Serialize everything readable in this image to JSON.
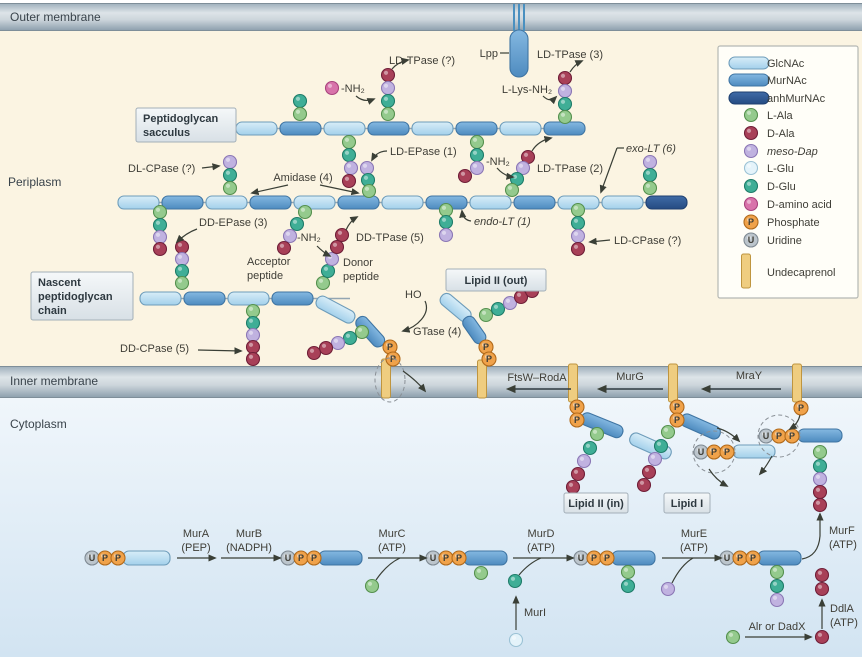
{
  "regions": {
    "outer_membrane": "Outer membrane",
    "periplasm": "Periplasm",
    "inner_membrane": "Inner membrane",
    "cytoplasm": "Cytoplasm"
  },
  "boxes": {
    "sacculus_l1": "Peptidoglycan",
    "sacculus_l2": "sacculus",
    "nascent_l1": "Nascent",
    "nascent_l2": "peptidoglycan",
    "nascent_l3": "chain",
    "lipid2_out": "Lipid II (out)",
    "lipid2_in": "Lipid II (in)",
    "lipid1": "Lipid I"
  },
  "labels": {
    "lpp": "Lpp",
    "ld_tpase_q": "LD-TPase (?)",
    "nh2": "-NH₂",
    "ld_tpase_3": "LD-TPase (3)",
    "l_lys_nh2": "L-Lys-NH₂",
    "dl_cpase": "DL-CPase (?)",
    "amidase": "Amidase (4)",
    "ld_epase": "LD-EPase (1)",
    "ld_tpase_2": "LD-TPase (2)",
    "exo_lt": "exo-LT (6)",
    "endo_lt": "endo-LT (1)",
    "ld_cpase": "LD-CPase (?)",
    "dd_epase": "DD-EPase (3)",
    "dd_tpase": "DD-TPase (5)",
    "acceptor_l1": "Acceptor",
    "acceptor_l2": "peptide",
    "donor_l1": "Donor",
    "donor_l2": "peptide",
    "dd_cpase": "DD-CPase (5)",
    "ho": "HO",
    "gtase": "GTase (4)"
  },
  "membrane_proteins": {
    "ftsw_roda": "FtsW–RodA",
    "murg": "MurG",
    "mray": "MraY"
  },
  "pathway": {
    "mura": "MurA",
    "mura_cof": "(PEP)",
    "murb": "MurB",
    "murb_cof": "(NADPH)",
    "murc": "MurC",
    "murc_cof": "(ATP)",
    "murd": "MurD",
    "murd_cof": "(ATP)",
    "mure": "MurE",
    "mure_cof": "(ATP)",
    "murf": "MurF",
    "murf_cof": "(ATP)",
    "muri": "MurI",
    "ddla": "DdlA",
    "ddla_cof": "(ATP)",
    "alr": "Alr or DadX"
  },
  "legend": {
    "items": [
      {
        "icon": "glcnac-cylinder",
        "label": "GlcNAc"
      },
      {
        "icon": "murnac-cylinder",
        "label": "MurNAc"
      },
      {
        "icon": "anhmurnac-cylinder",
        "label": "anhMurNAc"
      },
      {
        "icon": "l-ala-bead",
        "label": "L-Ala"
      },
      {
        "icon": "d-ala-bead",
        "label": "D-Ala"
      },
      {
        "icon": "meso-dap-bead",
        "label": "meso-Dap"
      },
      {
        "icon": "l-glu-bead",
        "label": "L-Glu"
      },
      {
        "icon": "d-glu-bead",
        "label": "D-Glu"
      },
      {
        "icon": "d-amino-acid-bead",
        "label": "D-amino acid"
      },
      {
        "icon": "phosphate-bead",
        "label": "Phosphate"
      },
      {
        "icon": "uridine-bead",
        "label": "Uridine"
      },
      {
        "icon": "undecaprenol-stick",
        "label": "Undecaprenol"
      }
    ]
  },
  "colors": {
    "glcnac": "#b9ddf1",
    "murnac": "#68a2d2",
    "anhmurnac": "#2f5d9e",
    "l_ala": "#94ca8d",
    "d_ala": "#a84058",
    "meso_dap": "#c0b2e0",
    "l_glu": "#e4f3fa",
    "d_glu": "#3fae96",
    "d_amino_acid": "#d873aa",
    "phosphate": "#f0a24a",
    "uridine": "#bcc5cc",
    "undecaprenol": "#efcd80",
    "membrane": "#b9c4cc",
    "periplasm_bg": "#fbf4e2",
    "cytoplasm_bg": "#ddeaf5",
    "arrow": "#3a3f36"
  },
  "shapes": {
    "cylinders": [
      [
        236,
        122,
        41,
        "g"
      ],
      [
        280,
        122,
        41,
        "m"
      ],
      [
        324,
        122,
        41,
        "g"
      ],
      [
        368,
        122,
        41,
        "m"
      ],
      [
        412,
        122,
        41,
        "g"
      ],
      [
        456,
        122,
        41,
        "m"
      ],
      [
        500,
        122,
        41,
        "g"
      ],
      [
        544,
        122,
        41,
        "m"
      ],
      [
        118,
        196,
        41,
        "g"
      ],
      [
        162,
        196,
        41,
        "m"
      ],
      [
        206,
        196,
        41,
        "g"
      ],
      [
        250,
        196,
        41,
        "m"
      ],
      [
        294,
        196,
        41,
        "g"
      ],
      [
        338,
        196,
        41,
        "m"
      ],
      [
        382,
        196,
        41,
        "g"
      ],
      [
        426,
        196,
        41,
        "m"
      ],
      [
        470,
        196,
        41,
        "g"
      ],
      [
        514,
        196,
        41,
        "m"
      ],
      [
        558,
        196,
        41,
        "g"
      ],
      [
        602,
        196,
        41,
        "g"
      ],
      [
        646,
        196,
        41,
        "a"
      ],
      [
        140,
        292,
        41,
        "g"
      ],
      [
        184,
        292,
        41,
        "m"
      ],
      [
        228,
        292,
        41,
        "g"
      ],
      [
        272,
        292,
        41,
        "m"
      ],
      [
        320,
        294,
        42,
        "g",
        28
      ],
      [
        363,
        314,
        36,
        "m",
        48
      ],
      [
        446,
        291,
        36,
        "g",
        40
      ],
      [
        471,
        314,
        30,
        "m",
        55
      ],
      [
        584,
        411,
        44,
        "m",
        22
      ],
      [
        633,
        431,
        44,
        "g",
        24
      ],
      [
        684,
        412,
        42,
        "m",
        24
      ],
      [
        733,
        445,
        42,
        "g"
      ],
      [
        798,
        429,
        44,
        "m"
      ],
      [
        123,
        551,
        47,
        "g",
        0,
        14
      ],
      [
        319,
        551,
        43,
        "m",
        0,
        14
      ],
      [
        464,
        551,
        43,
        "m",
        0,
        14
      ],
      [
        612,
        551,
        43,
        "m",
        0,
        14
      ],
      [
        758,
        551,
        43,
        "m",
        0,
        14
      ],
      [
        510,
        30,
        18,
        "m",
        0,
        47
      ],
      [
        729,
        57,
        40,
        "g",
        0,
        12
      ],
      [
        729,
        74,
        40,
        "m",
        0,
        12
      ],
      [
        729,
        92,
        40,
        "a",
        0,
        12
      ]
    ],
    "sticks": [
      [
        386,
        359,
        39
      ],
      [
        482,
        360,
        38
      ],
      [
        573,
        364,
        38
      ],
      [
        673,
        364,
        38
      ],
      [
        797,
        364,
        38
      ],
      [
        746,
        254,
        34
      ]
    ],
    "beads": [
      [
        300,
        101,
        "dglu"
      ],
      [
        300,
        114,
        "lala"
      ],
      [
        388,
        75,
        "dala"
      ],
      [
        388,
        88,
        "mdap"
      ],
      [
        388,
        101,
        "dglu"
      ],
      [
        388,
        114,
        "lala"
      ],
      [
        332,
        88,
        "dam"
      ],
      [
        565,
        78,
        "dala"
      ],
      [
        565,
        91,
        "mdap"
      ],
      [
        565,
        104,
        "dglu"
      ],
      [
        565,
        117,
        "lala"
      ],
      [
        349,
        142,
        "lala"
      ],
      [
        349,
        155,
        "dglu"
      ],
      [
        351,
        168,
        "mdap"
      ],
      [
        349,
        181,
        "dala"
      ],
      [
        367,
        168,
        "mdap"
      ],
      [
        368,
        180,
        "dglu"
      ],
      [
        369,
        191,
        "lala"
      ],
      [
        477,
        142,
        "lala"
      ],
      [
        477,
        155,
        "dglu"
      ],
      [
        477,
        168,
        "mdap"
      ],
      [
        465,
        176,
        "dala"
      ],
      [
        528,
        157,
        "dala"
      ],
      [
        523,
        168,
        "mdap"
      ],
      [
        517,
        179,
        "dglu"
      ],
      [
        512,
        190,
        "lala"
      ],
      [
        230,
        162,
        "mdap"
      ],
      [
        230,
        175,
        "dglu"
      ],
      [
        230,
        188,
        "lala"
      ],
      [
        650,
        162,
        "mdap"
      ],
      [
        650,
        175,
        "dglu"
      ],
      [
        650,
        188,
        "lala"
      ],
      [
        446,
        210,
        "lala"
      ],
      [
        446,
        222,
        "dglu"
      ],
      [
        446,
        235,
        "mdap"
      ],
      [
        578,
        210,
        "lala"
      ],
      [
        578,
        223,
        "dglu"
      ],
      [
        578,
        236,
        "mdap"
      ],
      [
        578,
        249,
        "dala"
      ],
      [
        305,
        212,
        "lala"
      ],
      [
        297,
        224,
        "dglu"
      ],
      [
        290,
        236,
        "mdap"
      ],
      [
        284,
        248,
        "dala"
      ],
      [
        323,
        283,
        "lala"
      ],
      [
        328,
        271,
        "dglu"
      ],
      [
        332,
        259,
        "mdap"
      ],
      [
        337,
        247,
        "dala"
      ],
      [
        342,
        235,
        "dala"
      ],
      [
        160,
        212,
        "lala"
      ],
      [
        160,
        225,
        "dglu"
      ],
      [
        160,
        237,
        "mdap"
      ],
      [
        160,
        249,
        "dala"
      ],
      [
        182,
        247,
        "dala"
      ],
      [
        182,
        259,
        "mdap"
      ],
      [
        182,
        271,
        "dglu"
      ],
      [
        182,
        283,
        "lala"
      ],
      [
        253,
        311,
        "lala"
      ],
      [
        253,
        323,
        "dglu"
      ],
      [
        253,
        335,
        "mdap"
      ],
      [
        253,
        347,
        "dala"
      ],
      [
        253,
        359,
        "dala"
      ],
      [
        362,
        332,
        "lala"
      ],
      [
        350,
        338,
        "dglu"
      ],
      [
        338,
        343,
        "mdap"
      ],
      [
        326,
        348,
        "dala"
      ],
      [
        314,
        353,
        "dala"
      ],
      [
        486,
        315,
        "lala"
      ],
      [
        498,
        309,
        "dglu"
      ],
      [
        510,
        303,
        "mdap"
      ],
      [
        521,
        297,
        "dala"
      ],
      [
        532,
        291,
        "dala"
      ],
      [
        390,
        347,
        "phos",
        "P"
      ],
      [
        393,
        359,
        "phos",
        "P"
      ],
      [
        486,
        347,
        "phos",
        "P"
      ],
      [
        489,
        359,
        "phos",
        "P"
      ],
      [
        577,
        407,
        "phos",
        "P"
      ],
      [
        577,
        420,
        "phos",
        "P"
      ],
      [
        677,
        407,
        "phos",
        "P"
      ],
      [
        677,
        420,
        "phos",
        "P"
      ],
      [
        801,
        408,
        "phos",
        "P"
      ],
      [
        597,
        434,
        "lala"
      ],
      [
        590,
        448,
        "dglu"
      ],
      [
        584,
        461,
        "mdap"
      ],
      [
        578,
        474,
        "dala"
      ],
      [
        573,
        487,
        "dala"
      ],
      [
        668,
        432,
        "lala"
      ],
      [
        661,
        446,
        "dglu"
      ],
      [
        655,
        459,
        "mdap"
      ],
      [
        649,
        472,
        "dala"
      ],
      [
        644,
        485,
        "dala"
      ],
      [
        701,
        452,
        "uri",
        "U"
      ],
      [
        714,
        452,
        "phos",
        "P"
      ],
      [
        727,
        452,
        "phos",
        "P"
      ],
      [
        766,
        436,
        "uri",
        "U"
      ],
      [
        779,
        436,
        "phos",
        "P"
      ],
      [
        792,
        436,
        "phos",
        "P"
      ],
      [
        820,
        452,
        "lala"
      ],
      [
        820,
        466,
        "dglu"
      ],
      [
        820,
        479,
        "mdap"
      ],
      [
        820,
        492,
        "dala"
      ],
      [
        820,
        505,
        "dala"
      ],
      [
        92,
        558,
        "uri",
        "U"
      ],
      [
        105,
        558,
        "phos",
        "P"
      ],
      [
        118,
        558,
        "phos",
        "P"
      ],
      [
        288,
        558,
        "uri",
        "U"
      ],
      [
        301,
        558,
        "phos",
        "P"
      ],
      [
        314,
        558,
        "phos",
        "P"
      ],
      [
        433,
        558,
        "uri",
        "U"
      ],
      [
        446,
        558,
        "phos",
        "P"
      ],
      [
        459,
        558,
        "phos",
        "P"
      ],
      [
        481,
        573,
        "lala"
      ],
      [
        581,
        558,
        "uri",
        "U"
      ],
      [
        594,
        558,
        "phos",
        "P"
      ],
      [
        607,
        558,
        "phos",
        "P"
      ],
      [
        628,
        572,
        "lala"
      ],
      [
        628,
        586,
        "dglu"
      ],
      [
        727,
        558,
        "uri",
        "U"
      ],
      [
        740,
        558,
        "phos",
        "P"
      ],
      [
        753,
        558,
        "phos",
        "P"
      ],
      [
        777,
        572,
        "lala"
      ],
      [
        777,
        586,
        "dglu"
      ],
      [
        777,
        600,
        "mdap"
      ],
      [
        372,
        586,
        "lala"
      ],
      [
        515,
        581,
        "dglu"
      ],
      [
        516,
        640,
        "lglu"
      ],
      [
        668,
        589,
        "mdap"
      ],
      [
        822,
        575,
        "dala"
      ],
      [
        822,
        589,
        "dala"
      ],
      [
        822,
        637,
        "dala"
      ],
      [
        733,
        637,
        "lala"
      ],
      [
        751,
        115,
        "lala"
      ],
      [
        751,
        133,
        "dala"
      ],
      [
        751,
        151,
        "mdap"
      ],
      [
        751,
        168,
        "lglu"
      ],
      [
        751,
        186,
        "dglu"
      ],
      [
        751,
        204,
        "dam"
      ],
      [
        751,
        222,
        "phos",
        "P"
      ],
      [
        751,
        240,
        "uri",
        "U"
      ]
    ]
  }
}
